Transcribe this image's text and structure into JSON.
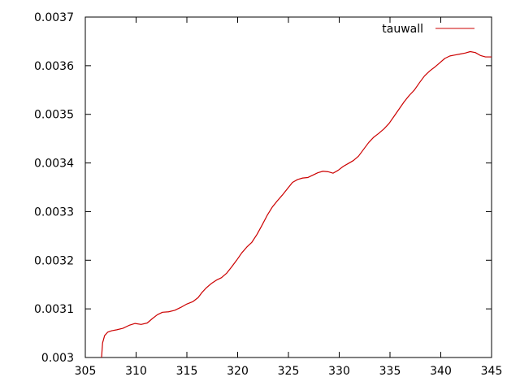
{
  "chart_data": {
    "type": "line",
    "title": "",
    "xlabel": "",
    "ylabel": "",
    "xlim": [
      305,
      345
    ],
    "ylim": [
      0.003,
      0.0037
    ],
    "x_ticks": [
      305,
      310,
      315,
      320,
      325,
      330,
      335,
      340,
      345
    ],
    "x_tick_labels": [
      "305",
      "310",
      "315",
      "320",
      "325",
      "330",
      "335",
      "340",
      "345"
    ],
    "y_ticks": [
      0.003,
      0.0031,
      0.0032,
      0.0033,
      0.0034,
      0.0035,
      0.0036,
      0.0037
    ],
    "y_tick_labels": [
      "0.003",
      "0.0031",
      "0.0032",
      "0.0033",
      "0.0034",
      "0.0035",
      "0.0036",
      "0.0037"
    ],
    "grid": false,
    "legend": {
      "position": "top-right"
    },
    "colors": {
      "series": "#cc0000",
      "axis": "#000000"
    },
    "series": [
      {
        "name": "tauwall",
        "x": [
          306.6,
          306.7,
          306.9,
          307.2,
          307.6,
          308.1,
          308.7,
          309.3,
          309.9,
          310.5,
          311.1,
          311.6,
          312.1,
          312.6,
          313.2,
          313.8,
          314.4,
          315.0,
          315.6,
          316.1,
          316.5,
          316.9,
          317.4,
          317.9,
          318.4,
          318.9,
          319.4,
          319.9,
          320.4,
          320.9,
          321.4,
          321.9,
          322.4,
          322.9,
          323.4,
          323.9,
          324.4,
          324.9,
          325.4,
          325.9,
          326.4,
          326.9,
          327.4,
          327.9,
          328.4,
          328.9,
          329.4,
          329.9,
          330.4,
          330.9,
          331.4,
          331.9,
          332.4,
          332.9,
          333.4,
          333.9,
          334.4,
          334.9,
          335.4,
          335.9,
          336.4,
          336.9,
          337.4,
          337.9,
          338.4,
          338.9,
          339.4,
          339.9,
          340.4,
          340.9,
          341.4,
          341.9,
          342.4,
          342.9,
          343.4,
          343.9,
          344.4,
          345.0
        ],
        "y": [
          0.003,
          0.00303,
          0.003045,
          0.003052,
          0.003055,
          0.003057,
          0.00306,
          0.003066,
          0.00307,
          0.003068,
          0.003071,
          0.00308,
          0.003088,
          0.003093,
          0.003094,
          0.003097,
          0.003103,
          0.00311,
          0.003115,
          0.003123,
          0.003134,
          0.003143,
          0.003152,
          0.003159,
          0.003164,
          0.003173,
          0.003186,
          0.0032,
          0.003215,
          0.003227,
          0.003237,
          0.003253,
          0.003272,
          0.003292,
          0.003309,
          0.003322,
          0.003334,
          0.003347,
          0.00336,
          0.003366,
          0.003369,
          0.00337,
          0.003375,
          0.00338,
          0.003383,
          0.003382,
          0.003379,
          0.003385,
          0.003393,
          0.003399,
          0.003405,
          0.003414,
          0.003428,
          0.003442,
          0.003453,
          0.003461,
          0.00347,
          0.003481,
          0.003496,
          0.003511,
          0.003526,
          0.003539,
          0.00355,
          0.003565,
          0.003579,
          0.003589,
          0.003597,
          0.003606,
          0.003615,
          0.00362,
          0.003622,
          0.003624,
          0.003626,
          0.003629,
          0.003627,
          0.003621,
          0.003618,
          0.003618
        ]
      }
    ]
  }
}
